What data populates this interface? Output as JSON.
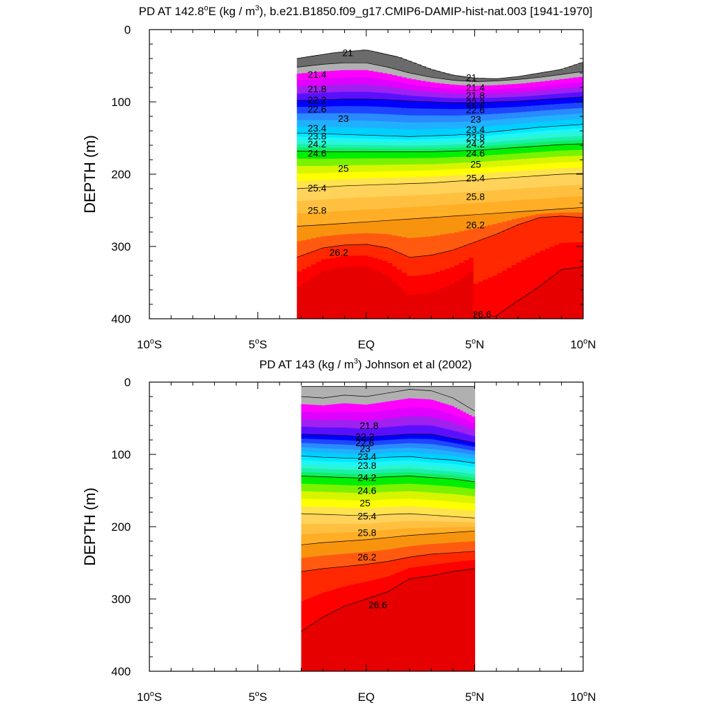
{
  "chart_data": [
    {
      "type": "heatmap",
      "title_prefix": "PD AT 142.8",
      "title_deg": "o",
      "title_mid": "E (kg / m",
      "title_sup": "3",
      "title_suffix": "), b.e21.B1850.f09_g17.CMIP6-DAMIP-hist-nat.003 [1941-1970]",
      "ylabel": "DEPTH (m)",
      "xlim": [
        -10,
        10
      ],
      "ylim": [
        400,
        0
      ],
      "x_ticks": [
        {
          "value": -10,
          "num": "10",
          "deg": "o",
          "hemi": "S"
        },
        {
          "value": -5,
          "num": "5",
          "deg": "o",
          "hemi": "S"
        },
        {
          "value": 0,
          "num": "EQ",
          "deg": "",
          "hemi": ""
        },
        {
          "value": 5,
          "num": "5",
          "deg": "o",
          "hemi": "N"
        },
        {
          "value": 10,
          "num": "10",
          "deg": "o",
          "hemi": "N"
        }
      ],
      "y_ticks": [
        0,
        100,
        200,
        300,
        400
      ],
      "data_x_range": [
        -3.2,
        10
      ],
      "contour_levels": [
        21,
        21.2,
        21.4,
        21.6,
        21.8,
        22,
        22.2,
        22.4,
        22.6,
        22.8,
        23,
        23.2,
        23.4,
        23.6,
        23.8,
        24,
        24.2,
        24.4,
        24.6,
        24.8,
        25,
        25.2,
        25.4,
        25.6,
        25.8,
        26,
        26.2,
        26.4,
        26.6
      ],
      "surface_depth": {
        "x": [
          -3.2,
          -1.5,
          0,
          1.5,
          3,
          4,
          5,
          6,
          7,
          8,
          9,
          10
        ],
        "depth": [
          40,
          32,
          28,
          38,
          55,
          63,
          67,
          68,
          65,
          60,
          55,
          45
        ]
      },
      "isopycnal_depths": {
        "x": [
          -3.2,
          -2,
          -1,
          0,
          1,
          2,
          3,
          4,
          5,
          6,
          7,
          8,
          9,
          10
        ],
        "levels": [
          21.2,
          22.2,
          23.2,
          24.2,
          25.2,
          25.8,
          26.2,
          26.6
        ],
        "depths": [
          [
            52,
            48,
            46,
            46,
            52,
            60,
            66,
            70,
            72,
            71,
            69,
            66,
            62,
            58
          ],
          [
            98,
            97,
            96,
            96,
            97,
            99,
            100,
            101,
            101,
            100,
            99,
            97,
            95,
            93
          ],
          [
            143,
            144,
            145,
            146,
            147,
            148,
            147,
            146,
            144,
            141,
            138,
            135,
            133,
            131
          ],
          [
            168,
            169,
            169,
            169,
            169,
            169,
            169,
            168,
            167,
            165,
            163,
            161,
            159,
            158
          ],
          [
            220,
            218,
            216,
            215,
            214,
            213,
            212,
            210,
            208,
            206,
            204,
            202,
            200,
            199
          ],
          [
            272,
            270,
            268,
            266,
            264,
            262,
            260,
            258,
            256,
            254,
            252,
            250,
            248,
            246
          ],
          [
            315,
            302,
            298,
            297,
            302,
            315,
            312,
            305,
            294,
            283,
            270,
            260,
            258,
            260
          ],
          [
            null,
            null,
            null,
            null,
            null,
            null,
            null,
            null,
            410,
            396,
            375,
            355,
            332,
            328
          ]
        ]
      },
      "contour_labels": [
        {
          "text": "21",
          "x": -1.1,
          "depth": 32
        },
        {
          "text": "21.4",
          "x": -2.7,
          "depth": 62
        },
        {
          "text": "21.8",
          "x": -2.7,
          "depth": 82
        },
        {
          "text": "22.2",
          "x": -2.7,
          "depth": 97
        },
        {
          "text": "22.6",
          "x": -2.7,
          "depth": 110
        },
        {
          "text": "23",
          "x": -1.3,
          "depth": 123
        },
        {
          "text": "23.4",
          "x": -2.7,
          "depth": 136
        },
        {
          "text": "23.8",
          "x": -2.7,
          "depth": 147
        },
        {
          "text": "24.2",
          "x": -2.7,
          "depth": 158
        },
        {
          "text": "24.6",
          "x": -2.7,
          "depth": 171
        },
        {
          "text": "25",
          "x": -1.3,
          "depth": 192
        },
        {
          "text": "25.4",
          "x": -2.7,
          "depth": 219
        },
        {
          "text": "25.8",
          "x": -2.7,
          "depth": 250
        },
        {
          "text": "26.2",
          "x": -1.7,
          "depth": 308
        },
        {
          "text": "21",
          "x": 4.6,
          "depth": 66
        },
        {
          "text": "21.4",
          "x": 4.6,
          "depth": 80
        },
        {
          "text": "21.8",
          "x": 4.6,
          "depth": 91
        },
        {
          "text": "22.2",
          "x": 4.6,
          "depth": 101
        },
        {
          "text": "22.6",
          "x": 4.6,
          "depth": 111
        },
        {
          "text": "23",
          "x": 4.8,
          "depth": 124
        },
        {
          "text": "23.4",
          "x": 4.6,
          "depth": 138
        },
        {
          "text": "23.8",
          "x": 4.6,
          "depth": 149
        },
        {
          "text": "24.2",
          "x": 4.6,
          "depth": 158
        },
        {
          "text": "24.6",
          "x": 4.6,
          "depth": 171
        },
        {
          "text": "25",
          "x": 4.8,
          "depth": 186
        },
        {
          "text": "25.4",
          "x": 4.6,
          "depth": 205
        },
        {
          "text": "25.8",
          "x": 4.6,
          "depth": 231
        },
        {
          "text": "26.2",
          "x": 4.6,
          "depth": 270
        },
        {
          "text": "26.6",
          "x": 4.9,
          "depth": 394
        }
      ]
    },
    {
      "type": "heatmap",
      "title_prefix": "PD AT 143 (kg / m",
      "title_sup": "3",
      "title_suffix": ") Johnson et al (2002)",
      "ylabel": "DEPTH (m)",
      "xlim": [
        -10,
        10
      ],
      "ylim": [
        400,
        0
      ],
      "x_ticks": [
        {
          "value": -10,
          "num": "10",
          "deg": "o",
          "hemi": "S"
        },
        {
          "value": -5,
          "num": "5",
          "deg": "o",
          "hemi": "S"
        },
        {
          "value": 0,
          "num": "EQ",
          "deg": "",
          "hemi": ""
        },
        {
          "value": 5,
          "num": "5",
          "deg": "o",
          "hemi": "N"
        },
        {
          "value": 10,
          "num": "10",
          "deg": "o",
          "hemi": "N"
        }
      ],
      "y_ticks": [
        0,
        100,
        200,
        300,
        400
      ],
      "data_x_range": [
        -3,
        5
      ],
      "contour_levels": [
        21.2,
        21.4,
        21.6,
        21.8,
        22,
        22.2,
        22.4,
        22.6,
        22.8,
        23,
        23.2,
        23.4,
        23.6,
        23.8,
        24,
        24.2,
        24.4,
        24.6,
        24.8,
        25,
        25.2,
        25.4,
        25.6,
        25.8,
        26,
        26.2,
        26.4,
        26.6
      ],
      "surface_depth": {
        "x": [
          -3,
          5
        ],
        "depth": [
          6,
          6
        ]
      },
      "isopycnal_depths": {
        "x": [
          -3,
          -2,
          -1,
          0,
          1,
          2,
          3,
          4,
          5
        ],
        "levels": [
          21.2,
          22.2,
          23.2,
          24.2,
          25.2,
          25.8,
          26.2,
          26.6
        ],
        "depths": [
          [
            20,
            22,
            18,
            20,
            15,
            10,
            12,
            22,
            40
          ],
          [
            72,
            73,
            74,
            76,
            74,
            72,
            72,
            78,
            84
          ],
          [
            102,
            104,
            105,
            106,
            104,
            103,
            106,
            108,
            112
          ],
          [
            130,
            131,
            132,
            133,
            131,
            130,
            132,
            134,
            138
          ],
          [
            182,
            183,
            184,
            185,
            183,
            182,
            184,
            186,
            188
          ],
          [
            225,
            222,
            220,
            218,
            215,
            212,
            210,
            208,
            206
          ],
          [
            262,
            258,
            255,
            252,
            248,
            242,
            238,
            236,
            234
          ],
          [
            345,
            325,
            310,
            300,
            290,
            272,
            268,
            262,
            258
          ]
        ]
      },
      "contour_labels": [
        {
          "text": "21.8",
          "x": -0.3,
          "depth": 60
        },
        {
          "text": "22.2",
          "x": -0.5,
          "depth": 75
        },
        {
          "text": "22.6",
          "x": -0.5,
          "depth": 84
        },
        {
          "text": "23",
          "x": -0.3,
          "depth": 92
        },
        {
          "text": "23.4",
          "x": -0.4,
          "depth": 103
        },
        {
          "text": "23.8",
          "x": -0.4,
          "depth": 115
        },
        {
          "text": "24.2",
          "x": -0.4,
          "depth": 132
        },
        {
          "text": "24.6",
          "x": -0.4,
          "depth": 150
        },
        {
          "text": "25",
          "x": -0.3,
          "depth": 167
        },
        {
          "text": "25.4",
          "x": -0.4,
          "depth": 185
        },
        {
          "text": "25.8",
          "x": -0.4,
          "depth": 208
        },
        {
          "text": "26.2",
          "x": -0.4,
          "depth": 242
        },
        {
          "text": "26.6",
          "x": 0.1,
          "depth": 308
        }
      ]
    }
  ]
}
